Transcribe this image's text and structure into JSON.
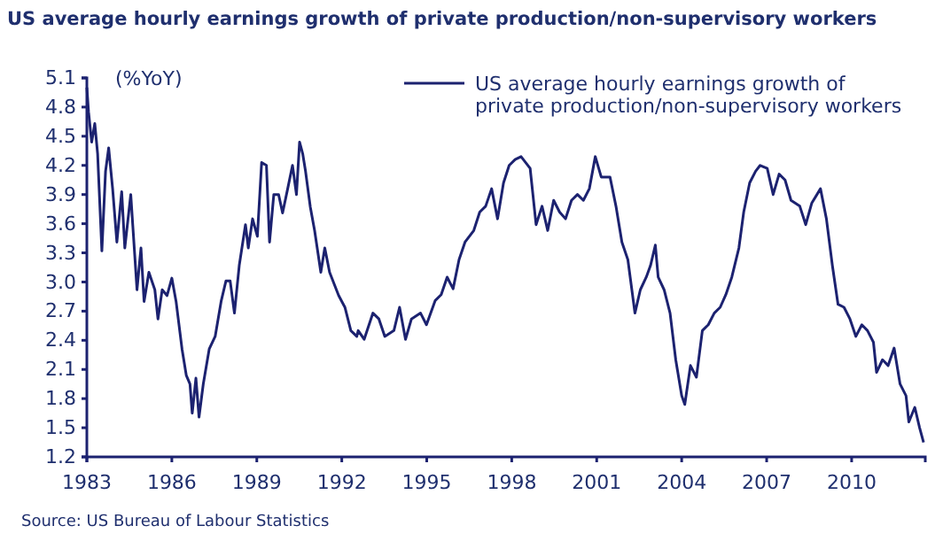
{
  "chart_data": {
    "type": "line",
    "title": "US average hourly earnings growth of private production/non-supervisory workers",
    "ylabel": "(%YoY)",
    "annotations": [
      "Source: US Bureau of Labour Statistics"
    ],
    "legend": "top right",
    "xlim": [
      1983,
      2012.6
    ],
    "xticks": [
      1983,
      1986,
      1989,
      1992,
      1995,
      1998,
      2001,
      2004,
      2007,
      2010
    ],
    "ylim": [
      1.2,
      5.1
    ],
    "yticks": [
      1.2,
      1.5,
      1.8,
      2.1,
      2.4,
      2.7,
      {
        "value": 3,
        "label": "3.0"
      },
      3.3,
      3.6,
      3.9,
      4.2,
      4.5,
      4.8,
      5.1
    ],
    "series": [
      {
        "name": "US average hourly earnings growth of private production/non-supervisory workers",
        "color": "#1c2270",
        "x": [
          1983,
          1983.06,
          1983.17,
          1983.28,
          1983.38,
          1983.53,
          1983.66,
          1983.77,
          1983.91,
          1984.06,
          1984.23,
          1984.34,
          1984.55,
          1984.66,
          1984.77,
          1984.91,
          1985.02,
          1985.19,
          1985.4,
          1985.51,
          1985.66,
          1985.83,
          1986,
          1986.15,
          1986.36,
          1986.51,
          1986.64,
          1986.72,
          1986.85,
          1986.96,
          1987.11,
          1987.32,
          1987.53,
          1987.74,
          1987.91,
          1988.06,
          1988.21,
          1988.38,
          1988.6,
          1988.7,
          1988.85,
          1989.02,
          1989.17,
          1989.34,
          1989.45,
          1989.6,
          1989.77,
          1989.91,
          1990.09,
          1990.26,
          1990.4,
          1990.51,
          1990.62,
          1990.72,
          1990.89,
          1991.04,
          1991.26,
          1991.4,
          1991.57,
          1991.89,
          1992.11,
          1992.32,
          1992.53,
          1992.58,
          1992.79,
          1993.1,
          1993.31,
          1993.52,
          1993.84,
          1994.04,
          1994.25,
          1994.46,
          1994.78,
          1994.99,
          1995.3,
          1995.51,
          1995.72,
          1995.93,
          1996.14,
          1996.35,
          1996.66,
          1996.87,
          1997.08,
          1997.29,
          1997.5,
          1997.71,
          1997.91,
          1998.12,
          1998.33,
          1998.65,
          1998.86,
          1999.07,
          1999.27,
          1999.48,
          1999.69,
          1999.9,
          2000.11,
          2000.32,
          2000.53,
          2000.74,
          2000.95,
          2001.16,
          2001.47,
          2001.68,
          2001.89,
          2002.1,
          2002.35,
          2002.54,
          2002.75,
          2002.9,
          2003.07,
          2003.17,
          2003.38,
          2003.59,
          2003.79,
          2004,
          2004.11,
          2004.31,
          2004.52,
          2004.73,
          2004.94,
          2005.15,
          2005.36,
          2005.56,
          2005.77,
          2006.02,
          2006.19,
          2006.4,
          2006.61,
          2006.77,
          2007.02,
          2007.23,
          2007.44,
          2007.65,
          2007.86,
          2008.17,
          2008.38,
          2008.59,
          2008.9,
          2009.11,
          2009.32,
          2009.52,
          2009.73,
          2009.94,
          2010.15,
          2010.36,
          2010.56,
          2010.77,
          2010.88,
          2011.09,
          2011.29,
          2011.5,
          2011.71,
          2011.92,
          2012.02,
          2012.23,
          2012.4,
          2012.54
        ],
        "values": [
          5.0,
          4.75,
          4.44,
          4.63,
          4.32,
          3.32,
          4.14,
          4.38,
          3.96,
          3.41,
          3.93,
          3.35,
          3.9,
          3.41,
          2.92,
          3.35,
          2.8,
          3.1,
          2.92,
          2.62,
          2.92,
          2.86,
          3.04,
          2.8,
          2.31,
          2.04,
          1.95,
          1.65,
          2.01,
          1.61,
          1.95,
          2.31,
          2.44,
          2.8,
          3.01,
          3.01,
          2.68,
          3.17,
          3.59,
          3.35,
          3.65,
          3.47,
          4.23,
          4.2,
          3.41,
          3.9,
          3.9,
          3.71,
          3.96,
          4.2,
          3.9,
          4.44,
          4.32,
          4.14,
          3.77,
          3.53,
          3.1,
          3.35,
          3.1,
          2.86,
          2.74,
          2.5,
          2.44,
          2.5,
          2.41,
          2.68,
          2.62,
          2.44,
          2.5,
          2.74,
          2.41,
          2.62,
          2.68,
          2.56,
          2.81,
          2.87,
          3.05,
          2.93,
          3.23,
          3.41,
          3.53,
          3.72,
          3.78,
          3.96,
          3.65,
          4.02,
          4.2,
          4.26,
          4.29,
          4.17,
          3.59,
          3.78,
          3.53,
          3.84,
          3.72,
          3.65,
          3.84,
          3.9,
          3.84,
          3.96,
          4.29,
          4.08,
          4.08,
          3.78,
          3.41,
          3.23,
          2.68,
          2.92,
          3.05,
          3.17,
          3.38,
          3.05,
          2.92,
          2.68,
          2.2,
          1.83,
          1.74,
          2.14,
          2.02,
          2.5,
          2.56,
          2.68,
          2.74,
          2.87,
          3.05,
          3.35,
          3.72,
          4.02,
          4.14,
          4.2,
          4.17,
          3.9,
          4.11,
          4.05,
          3.84,
          3.78,
          3.59,
          3.81,
          3.96,
          3.65,
          3.17,
          2.77,
          2.74,
          2.62,
          2.44,
          2.56,
          2.5,
          2.38,
          2.07,
          2.2,
          2.14,
          2.32,
          1.95,
          1.83,
          1.56,
          1.71,
          1.5,
          1.35
        ]
      }
    ]
  }
}
